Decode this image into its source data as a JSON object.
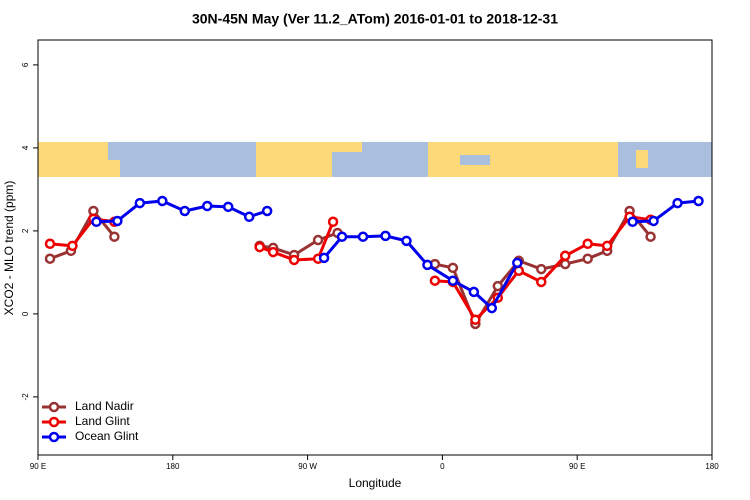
{
  "chart_data": {
    "type": "line",
    "title": "30N-45N May (Ver 11.2_ATom)   2016-01-01 to 2018-12-31",
    "x_label": "Longitude",
    "y_label": "XCO2 - MLO trend (ppm)",
    "xlim": [
      90,
      540
    ],
    "ylim": [
      -3.4,
      6.6
    ],
    "xticks": [
      {
        "value": 90,
        "label": "90 E"
      },
      180,
      {
        "value": 270,
        "label": "90 W"
      },
      {
        "value": 360,
        "label": "0"
      },
      {
        "value": 450,
        "label": "90 E"
      },
      {
        "value": 540,
        "label": "180"
      }
    ],
    "yticks": [
      -2,
      0,
      2,
      4,
      6
    ],
    "legend": "bottom-left",
    "series": [
      {
        "name": "Land Nadir",
        "color": "#993333",
        "x": [
          98,
          112,
          127,
          141,
          null,
          238,
          247,
          261,
          277,
          290,
          null,
          355,
          367,
          382,
          397,
          411,
          426,
          442,
          457,
          470,
          485,
          499
        ],
        "values": [
          1.33,
          1.52,
          2.48,
          1.86,
          null,
          1.64,
          1.59,
          1.42,
          1.78,
          1.95,
          null,
          1.2,
          1.11,
          -0.24,
          0.67,
          1.28,
          1.08,
          1.2,
          1.33,
          1.52,
          2.48,
          1.86
        ]
      },
      {
        "name": "Land Glint",
        "color": "#ee0000",
        "x": [
          98,
          113,
          127,
          141,
          null,
          238,
          247,
          261,
          277,
          287,
          null,
          355,
          367,
          382,
          397,
          411,
          426,
          442,
          457,
          470,
          485,
          499
        ],
        "values": [
          1.69,
          1.64,
          2.29,
          2.22,
          null,
          1.61,
          1.49,
          1.3,
          1.33,
          2.22,
          null,
          0.8,
          0.77,
          -0.14,
          0.39,
          1.04,
          0.77,
          1.4,
          1.69,
          1.64,
          2.34,
          2.27
        ]
      },
      {
        "name": "Ocean Glint",
        "color": "#0000ee",
        "x": [
          129,
          143,
          158,
          173,
          188,
          203,
          217,
          231,
          243,
          null,
          281,
          293,
          307,
          322,
          336,
          350,
          367,
          381,
          393,
          410,
          null,
          487,
          501,
          517,
          531
        ],
        "values": [
          2.22,
          2.24,
          2.67,
          2.72,
          2.48,
          2.6,
          2.58,
          2.34,
          2.48,
          null,
          1.35,
          1.86,
          1.86,
          1.88,
          1.76,
          1.18,
          0.8,
          0.53,
          0.14,
          1.23,
          null,
          2.22,
          2.24,
          2.67,
          2.72
        ]
      }
    ]
  }
}
